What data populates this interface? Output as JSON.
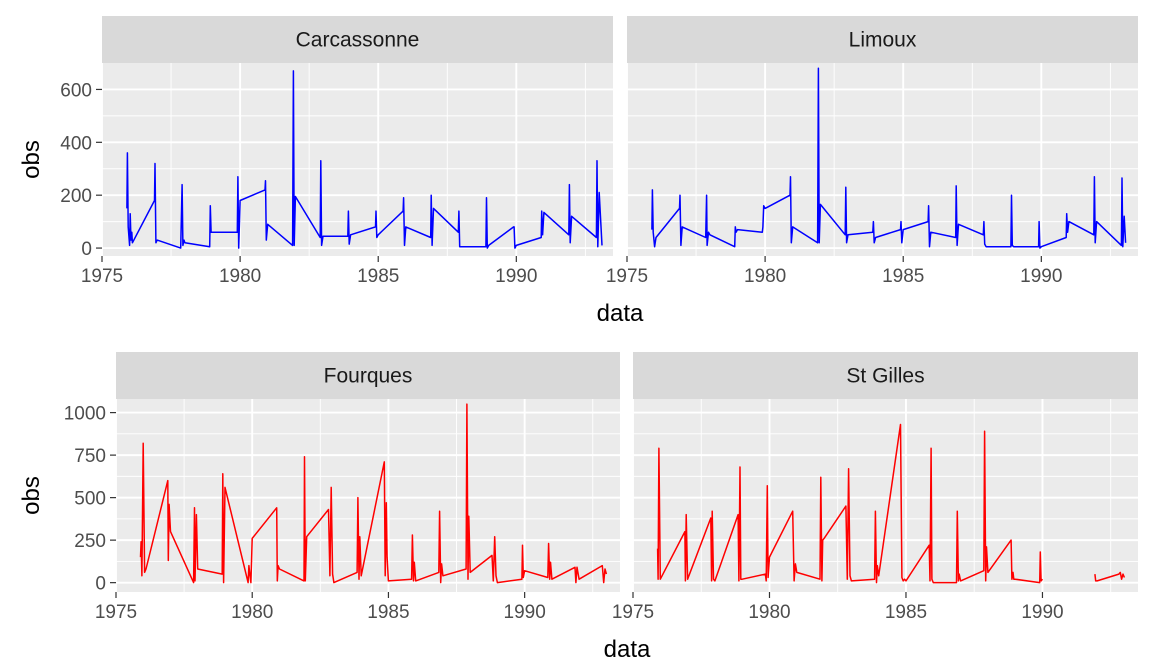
{
  "chart_data": [
    {
      "type": "line",
      "ylabel": "obs",
      "xlabel": "data",
      "color": "#0000ff",
      "xlim": [
        1975,
        1993.5
      ],
      "ylim": [
        -30,
        700
      ],
      "xticks": [
        1975,
        1980,
        1985,
        1990
      ],
      "yticks": [
        0,
        200,
        400,
        600
      ],
      "grid": true,
      "series": [
        {
          "name": "Carcassonne",
          "x": [
            1975.9,
            1975.92,
            1975.95,
            1976.0,
            1976.02,
            1976.05,
            1976.08,
            1976.1,
            1976.9,
            1976.92,
            1976.95,
            1977.0,
            1977.85,
            1977.9,
            1977.93,
            1977.97,
            1978.0,
            1978.9,
            1978.92,
            1978.95,
            1979.0,
            1979.9,
            1979.92,
            1979.95,
            1980.0,
            1980.9,
            1980.92,
            1980.95,
            1981.0,
            1981.9,
            1981.93,
            1981.96,
            1982.0,
            1982.9,
            1982.92,
            1982.95,
            1983.0,
            1983.9,
            1983.92,
            1983.95,
            1984.0,
            1984.9,
            1984.92,
            1984.95,
            1985.0,
            1985.9,
            1985.92,
            1985.95,
            1986.0,
            1986.9,
            1986.92,
            1986.95,
            1987.0,
            1987.9,
            1987.92,
            1987.95,
            1988.0,
            1988.9,
            1988.92,
            1988.95,
            1989.0,
            1989.9,
            1989.92,
            1989.95,
            1990.0,
            1990.9,
            1990.92,
            1990.95,
            1991.0,
            1991.9,
            1991.92,
            1991.95,
            1992.0,
            1992.9,
            1992.92,
            1992.95,
            1993.0,
            1993.1
          ],
          "values": [
            150,
            360,
            80,
            10,
            130,
            30,
            60,
            20,
            180,
            320,
            20,
            30,
            0,
            240,
            10,
            30,
            20,
            5,
            160,
            60,
            60,
            60,
            270,
            0,
            180,
            220,
            255,
            30,
            90,
            10,
            670,
            10,
            195,
            40,
            330,
            10,
            45,
            45,
            140,
            15,
            50,
            80,
            140,
            40,
            50,
            140,
            190,
            10,
            80,
            40,
            200,
            10,
            150,
            60,
            140,
            5,
            5,
            5,
            190,
            0,
            10,
            80,
            80,
            0,
            10,
            40,
            140,
            50,
            135,
            50,
            240,
            20,
            120,
            40,
            330,
            5,
            210,
            10
          ]
        },
        {
          "name": "Limoux",
          "x": [
            1975.9,
            1975.92,
            1975.95,
            1976.0,
            1976.05,
            1976.9,
            1976.92,
            1976.95,
            1977.0,
            1977.85,
            1977.88,
            1977.9,
            1977.95,
            1978.0,
            1978.9,
            1978.92,
            1978.95,
            1979.0,
            1979.9,
            1979.92,
            1979.95,
            1980.0,
            1980.9,
            1980.92,
            1980.95,
            1981.0,
            1981.9,
            1981.93,
            1981.96,
            1982.0,
            1982.9,
            1982.92,
            1982.95,
            1983.0,
            1983.9,
            1983.92,
            1983.95,
            1984.0,
            1984.9,
            1984.92,
            1984.95,
            1985.0,
            1985.9,
            1985.92,
            1985.95,
            1986.0,
            1986.9,
            1986.92,
            1986.95,
            1987.0,
            1987.9,
            1987.92,
            1987.95,
            1988.0,
            1988.9,
            1988.92,
            1988.95,
            1989.0,
            1989.9,
            1989.92,
            1989.95,
            1990.0,
            1990.9,
            1990.92,
            1990.95,
            1991.0,
            1991.9,
            1991.92,
            1991.95,
            1992.0,
            1992.9,
            1992.92,
            1992.95,
            1993.0,
            1993.05
          ],
          "values": [
            70,
            220,
            60,
            5,
            40,
            150,
            200,
            10,
            80,
            40,
            200,
            10,
            60,
            50,
            5,
            80,
            60,
            70,
            60,
            80,
            160,
            150,
            200,
            270,
            20,
            80,
            20,
            680,
            20,
            165,
            50,
            230,
            20,
            50,
            60,
            100,
            20,
            40,
            70,
            100,
            20,
            70,
            100,
            160,
            5,
            60,
            40,
            235,
            10,
            90,
            50,
            100,
            15,
            5,
            5,
            200,
            10,
            5,
            5,
            100,
            0,
            5,
            40,
            130,
            60,
            100,
            50,
            270,
            20,
            100,
            10,
            265,
            5,
            120,
            20
          ]
        }
      ]
    },
    {
      "type": "line",
      "ylabel": "obs",
      "xlabel": "data",
      "color": "#ff0000",
      "xlim": [
        1975,
        1993.5
      ],
      "ylim": [
        -55,
        1080
      ],
      "xticks": [
        1975,
        1980,
        1985,
        1990
      ],
      "yticks": [
        0,
        250,
        500,
        750,
        1000
      ],
      "grid": true,
      "series": [
        {
          "name": "Fourques",
          "x": [
            1975.9,
            1975.92,
            1975.95,
            1976.0,
            1976.05,
            1976.1,
            1976.9,
            1976.92,
            1976.95,
            1977.0,
            1977.85,
            1977.88,
            1977.9,
            1977.95,
            1978.0,
            1978.9,
            1978.92,
            1978.95,
            1979.0,
            1979.85,
            1979.88,
            1979.92,
            1979.95,
            1980.0,
            1980.9,
            1980.92,
            1980.95,
            1981.0,
            1981.9,
            1981.92,
            1981.95,
            1982.0,
            1982.8,
            1982.85,
            1982.9,
            1982.95,
            1983.0,
            1983.85,
            1983.88,
            1983.92,
            1983.95,
            1984.0,
            1984.85,
            1984.88,
            1984.92,
            1984.95,
            1985.0,
            1985.85,
            1985.88,
            1985.92,
            1985.95,
            1986.0,
            1986.85,
            1986.88,
            1986.92,
            1986.95,
            1987.0,
            1987.85,
            1987.88,
            1987.92,
            1987.95,
            1988.0,
            1988.8,
            1988.85,
            1988.9,
            1988.95,
            1989.0,
            1989.9,
            1989.92,
            1989.95,
            1990.0,
            1990.85,
            1990.88,
            1990.92,
            1990.95,
            1991.0,
            1991.85,
            1991.88,
            1991.92,
            1992.0,
            1992.85,
            1992.9,
            1992.95,
            1993.0
          ],
          "values": [
            150,
            240,
            40,
            820,
            60,
            80,
            600,
            130,
            460,
            300,
            0,
            440,
            10,
            400,
            80,
            50,
            640,
            0,
            560,
            0,
            100,
            40,
            0,
            260,
            440,
            10,
            100,
            80,
            10,
            740,
            10,
            270,
            430,
            40,
            560,
            50,
            0,
            60,
            500,
            20,
            270,
            40,
            710,
            40,
            470,
            150,
            10,
            20,
            280,
            10,
            120,
            10,
            60,
            420,
            0,
            110,
            40,
            80,
            1050,
            20,
            390,
            60,
            160,
            10,
            270,
            40,
            0,
            20,
            220,
            30,
            70,
            30,
            230,
            20,
            120,
            20,
            90,
            0,
            90,
            20,
            100,
            0,
            80,
            50
          ]
        },
        {
          "name": "St Gilles",
          "x": [
            1975.9,
            1975.92,
            1975.95,
            1976.0,
            1976.9,
            1976.92,
            1976.95,
            1977.0,
            1977.85,
            1977.88,
            1977.9,
            1977.95,
            1978.0,
            1978.85,
            1978.88,
            1978.92,
            1978.95,
            1979.0,
            1979.85,
            1979.88,
            1979.92,
            1979.95,
            1980.0,
            1980.85,
            1980.9,
            1980.95,
            1981.0,
            1981.85,
            1981.88,
            1981.92,
            1981.95,
            1982.0,
            1982.8,
            1982.85,
            1982.9,
            1982.95,
            1983.0,
            1983.85,
            1983.88,
            1983.92,
            1983.95,
            1984.0,
            1984.8,
            1984.85,
            1984.9,
            1984.95,
            1985.0,
            1985.85,
            1985.88,
            1985.92,
            1985.95,
            1986.0,
            1986.85,
            1986.88,
            1986.92,
            1986.95,
            1987.0,
            1987.85,
            1987.88,
            1987.92,
            1987.95,
            1988.0,
            1988.85,
            1988.88,
            1988.92,
            1988.95,
            1989.0,
            1989.9,
            1989.92,
            1989.95,
            1990.0,
            1991.9,
            1991.92,
            1991.95,
            1992.0,
            1992.8,
            1992.85,
            1992.9,
            1992.95,
            1993.0
          ],
          "values": [
            200,
            20,
            790,
            20,
            300,
            10,
            400,
            20,
            380,
            10,
            420,
            20,
            10,
            400,
            10,
            680,
            20,
            20,
            50,
            10,
            570,
            30,
            150,
            420,
            10,
            110,
            60,
            20,
            620,
            10,
            250,
            260,
            450,
            20,
            670,
            40,
            10,
            20,
            420,
            0,
            100,
            40,
            930,
            30,
            10,
            20,
            10,
            220,
            10,
            790,
            20,
            0,
            0,
            420,
            10,
            50,
            10,
            70,
            890,
            10,
            210,
            60,
            250,
            20,
            60,
            20,
            20,
            0,
            180,
            10,
            20,
            null,
            50,
            10,
            10,
            50,
            60,
            20,
            50,
            30
          ]
        }
      ]
    }
  ]
}
